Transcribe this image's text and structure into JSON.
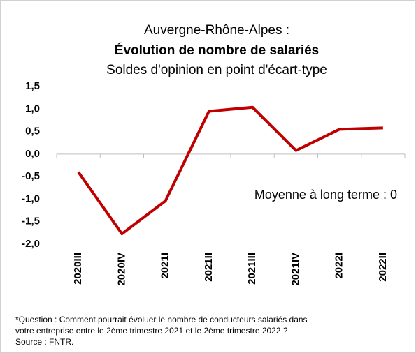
{
  "chart_data": {
    "type": "line",
    "title": "Auvergne-Rhône-Alpes :",
    "subtitle_bold": "Évolution de nombre de salariés",
    "subtitle": "Soldes d'opinion en point d'écart-type",
    "categories": [
      "2020III",
      "2020IV",
      "2021I",
      "2021II",
      "2021III",
      "2021IV",
      "2022I",
      "2022II"
    ],
    "series": [
      {
        "name": "Auvergne-Rhône-Alpes",
        "color": "#c00000",
        "values": [
          -0.4,
          -1.77,
          -1.04,
          0.95,
          1.04,
          0.08,
          0.55,
          0.58
        ]
      }
    ],
    "ylim": [
      -2.0,
      1.5
    ],
    "yticks": [
      {
        "value": 1.5,
        "label": "1,5"
      },
      {
        "value": 1.0,
        "label": "1,0"
      },
      {
        "value": 0.5,
        "label": "0,5"
      },
      {
        "value": 0.0,
        "label": "0,0"
      },
      {
        "value": -0.5,
        "label": "-0,5"
      },
      {
        "value": -1.0,
        "label": "-1,0"
      },
      {
        "value": -1.5,
        "label": "-1,5"
      },
      {
        "value": -2.0,
        "label": "-2,0"
      }
    ],
    "grid": false,
    "annotation": "Moyenne à long terme : 0",
    "notes": [
      "*Question : Comment pourrait évoluer le nombre de conducteurs salariés dans",
      "votre entreprise entre le 2ème trimestre 2021 et le 2ème trimestre 2022 ?",
      "Source : FNTR."
    ]
  }
}
